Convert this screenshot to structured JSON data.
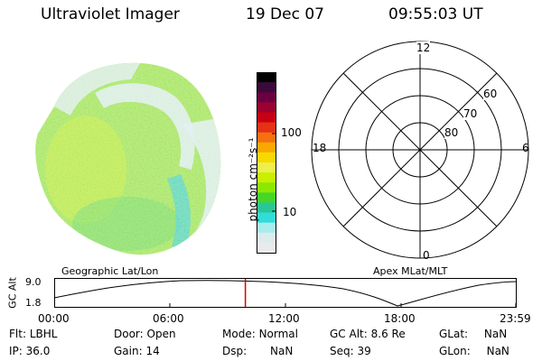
{
  "header": {
    "instrument": "Ultraviolet Imager",
    "date": "19 Dec 07",
    "time": "09:55:03 UT"
  },
  "colorbar": {
    "unit_label": "photon cm⁻²s⁻¹",
    "ticks": [
      "100",
      "10"
    ],
    "colors": [
      "#000000",
      "#3a0a3a",
      "#6a0040",
      "#9a0030",
      "#c80014",
      "#e43214",
      "#f77010",
      "#f8a800",
      "#f8d800",
      "#ecf04c",
      "#c8f000",
      "#8ce800",
      "#44d628",
      "#28c896",
      "#32dcd8",
      "#a8ecec",
      "#dcecec",
      "#eaeaea"
    ]
  },
  "polar": {
    "mlt_labels": {
      "top": "12",
      "right": "6",
      "bottom": "0",
      "left": "18"
    },
    "mlat_labels": [
      "60",
      "70",
      "80"
    ]
  },
  "panels": {
    "left_caption": "Geographic Lat/Lon",
    "right_caption": "Apex MLat/MLT"
  },
  "altitude_plot": {
    "ylabel": "GC Alt",
    "yticks": [
      "9.0",
      "1.8"
    ],
    "xticks": [
      "00:00",
      "06:00",
      "12:00",
      "18:00",
      "23:59"
    ],
    "current_time_hours": 9.92,
    "marker_color": "#e00000"
  },
  "info": {
    "flt": {
      "label": "Flt:",
      "value": "LBHL"
    },
    "ip": {
      "label": "IP:",
      "value": "36.0"
    },
    "door": {
      "label": "Door:",
      "value": "Open"
    },
    "gain": {
      "label": "Gain:",
      "value": "14"
    },
    "mode": {
      "label": "Mode:",
      "value": "Normal"
    },
    "dsp": {
      "label": "Dsp:",
      "value": "NaN"
    },
    "gcalt": {
      "label": "GC Alt:",
      "value": "8.6 Re"
    },
    "seq": {
      "label": "Seq:",
      "value": "39"
    },
    "glat": {
      "label": "GLat:",
      "value": "NaN"
    },
    "glon": {
      "label": "GLon:",
      "value": "NaN"
    }
  }
}
